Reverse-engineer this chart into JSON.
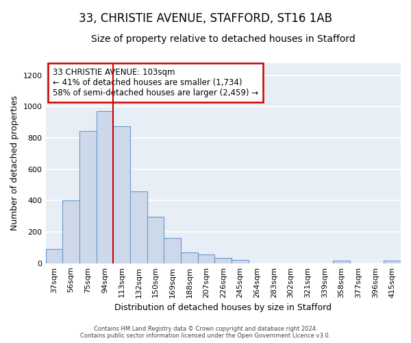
{
  "title1": "33, CHRISTIE AVENUE, STAFFORD, ST16 1AB",
  "title2": "Size of property relative to detached houses in Stafford",
  "xlabel": "Distribution of detached houses by size in Stafford",
  "ylabel": "Number of detached properties",
  "categories": [
    "37sqm",
    "56sqm",
    "75sqm",
    "94sqm",
    "113sqm",
    "132sqm",
    "150sqm",
    "169sqm",
    "188sqm",
    "207sqm",
    "226sqm",
    "245sqm",
    "264sqm",
    "283sqm",
    "302sqm",
    "321sqm",
    "339sqm",
    "358sqm",
    "377sqm",
    "396sqm",
    "415sqm"
  ],
  "values": [
    90,
    400,
    845,
    970,
    875,
    460,
    295,
    160,
    70,
    55,
    35,
    20,
    0,
    0,
    0,
    0,
    0,
    15,
    0,
    0,
    15
  ],
  "bar_color": "#cdd9ea",
  "bar_edge_color": "#6699cc",
  "background_color": "#e8eef5",
  "grid_color": "#ffffff",
  "red_line_x": 4.0,
  "annotation_title": "33 CHRISTIE AVENUE: 103sqm",
  "annotation_line1": "← 41% of detached houses are smaller (1,734)",
  "annotation_line2": "58% of semi-detached houses are larger (2,459) →",
  "annotation_box_color": "#ffffff",
  "annotation_border_color": "#cc0000",
  "ylim": [
    0,
    1280
  ],
  "yticks": [
    0,
    200,
    400,
    600,
    800,
    1000,
    1200
  ],
  "title_fontsize": 12,
  "subtitle_fontsize": 10,
  "axis_label_fontsize": 9,
  "tick_fontsize": 8,
  "footer": "Contains HM Land Registry data © Crown copyright and database right 2024.\nContains public sector information licensed under the Open Government Licence v3.0."
}
